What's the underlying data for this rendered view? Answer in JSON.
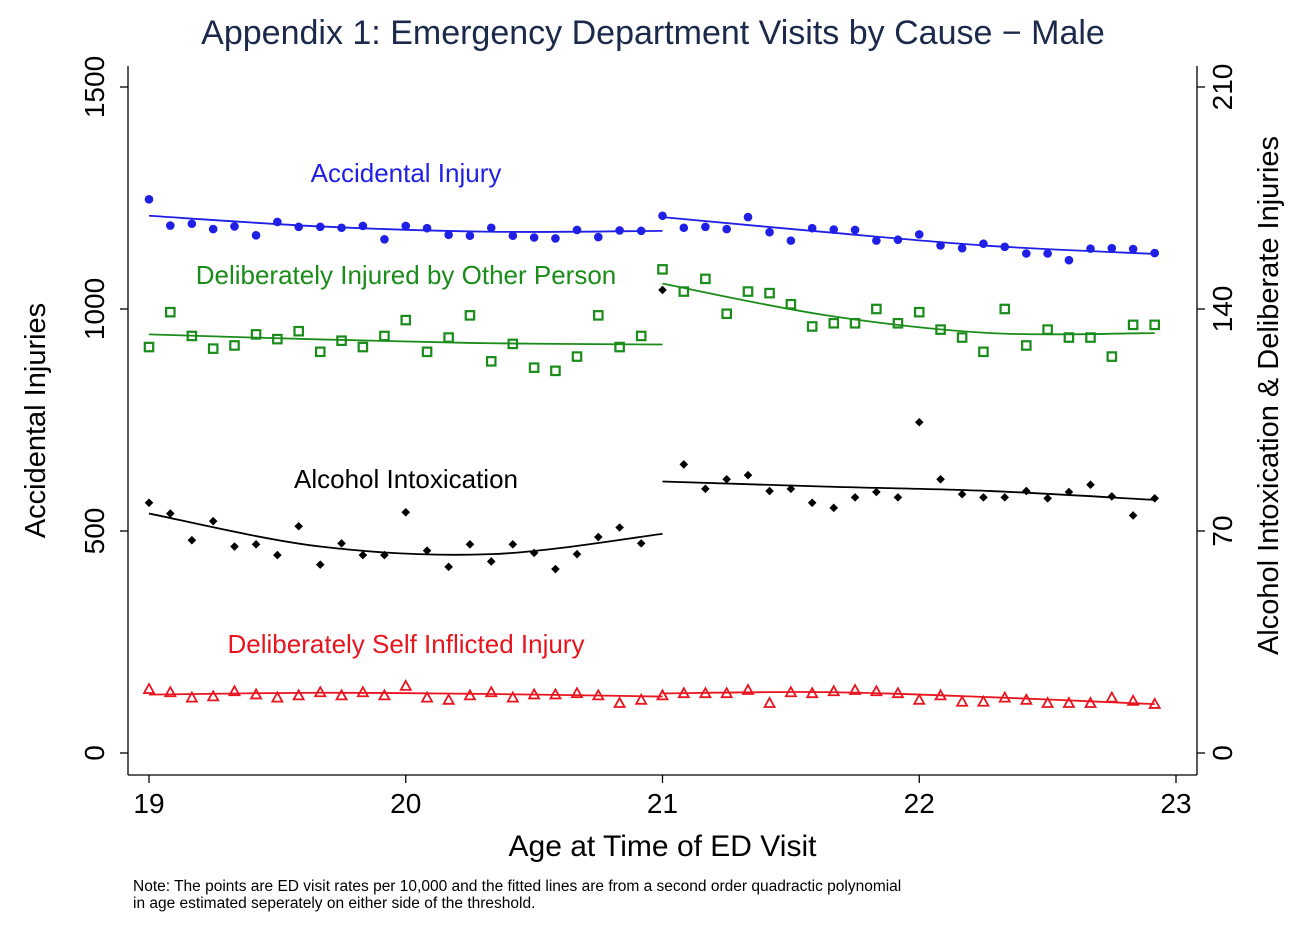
{
  "chart_data": {
    "type": "scatter",
    "title": "Appendix 1: Emergency Department Visits by Cause − Male",
    "xlabel": "Age at Time of ED Visit",
    "ylabel_left": "Accidental Injuries",
    "ylabel_right": "Alcohol Intoxication & Deliberate Injuries",
    "xlim": [
      19,
      23
    ],
    "ylim_left": [
      0,
      1500
    ],
    "ylim_right": [
      0,
      210
    ],
    "xticks": [
      "19",
      "20",
      "21",
      "22",
      "23"
    ],
    "yticks_left": [
      "0",
      "500",
      "1000",
      "1500"
    ],
    "yticks_right": [
      "0",
      "70",
      "140",
      "210"
    ],
    "grid": false,
    "threshold": 21,
    "series": [
      {
        "name": "Accidental Injury",
        "axis": "left",
        "color": "#1f1fe6",
        "marker": "circle",
        "x": [
          19.0,
          19.083,
          19.167,
          19.25,
          19.333,
          19.417,
          19.5,
          19.583,
          19.667,
          19.75,
          19.833,
          19.917,
          20.0,
          20.083,
          20.167,
          20.25,
          20.333,
          20.417,
          20.5,
          20.583,
          20.667,
          20.75,
          20.833,
          20.917,
          21.0,
          21.083,
          21.167,
          21.25,
          21.333,
          21.417,
          21.5,
          21.583,
          21.667,
          21.75,
          21.833,
          21.917,
          22.0,
          22.083,
          22.167,
          22.25,
          22.333,
          22.417,
          22.5,
          22.583,
          22.667,
          22.75,
          22.833,
          22.917
        ],
        "y": [
          1247,
          1188,
          1192,
          1180,
          1186,
          1166,
          1196,
          1185,
          1185,
          1183,
          1187,
          1157,
          1187,
          1182,
          1167,
          1165,
          1183,
          1165,
          1161,
          1159,
          1178,
          1162,
          1177,
          1176,
          1210,
          1183,
          1185,
          1180,
          1207,
          1173,
          1154,
          1182,
          1179,
          1178,
          1154,
          1156,
          1168,
          1143,
          1137,
          1147,
          1140,
          1125,
          1125,
          1110,
          1136,
          1137,
          1135,
          1126
        ],
        "fit_left": [
          1210,
          1186,
          1174,
          1176
        ],
        "fit_right": [
          1207,
          1173,
          1142,
          1124
        ]
      },
      {
        "name": "Deliberately Injured by Other Person",
        "axis": "right",
        "color": "#1a8c1a",
        "marker": "square",
        "x": [
          19.0,
          19.083,
          19.167,
          19.25,
          19.333,
          19.417,
          19.5,
          19.583,
          19.667,
          19.75,
          19.833,
          19.917,
          20.0,
          20.083,
          20.167,
          20.25,
          20.333,
          20.417,
          20.5,
          20.583,
          20.667,
          20.75,
          20.833,
          20.917,
          21.0,
          21.083,
          21.167,
          21.25,
          21.333,
          21.417,
          21.5,
          21.583,
          21.667,
          21.75,
          21.833,
          21.917,
          22.0,
          22.083,
          22.167,
          22.25,
          22.333,
          22.417,
          22.5,
          22.583,
          22.667,
          22.75,
          22.833,
          22.917
        ],
        "y": [
          128,
          139,
          131.5,
          127.5,
          128.5,
          132,
          130.5,
          133,
          126.5,
          130,
          128,
          131.5,
          136.5,
          126.5,
          131,
          138,
          123.5,
          129,
          121.5,
          120.5,
          125,
          138,
          128,
          131.5,
          152.5,
          145.5,
          149.5,
          138.5,
          145.5,
          145,
          141.5,
          134.5,
          135.5,
          135.5,
          140,
          135.5,
          139,
          133.5,
          131,
          126.5,
          140,
          128.5,
          133.5,
          131,
          131,
          125,
          135,
          135
        ],
        "fit_left": [
          132,
          130.4,
          129.2,
          128.8
        ],
        "fit_right": [
          148,
          138,
          132.4,
          132.4
        ]
      },
      {
        "name": "Alcohol Intoxication",
        "axis": "right",
        "color": "#000000",
        "marker": "diamond",
        "x": [
          19.0,
          19.083,
          19.167,
          19.25,
          19.333,
          19.417,
          19.5,
          19.583,
          19.667,
          19.75,
          19.833,
          19.917,
          20.0,
          20.083,
          20.167,
          20.25,
          20.333,
          20.417,
          20.5,
          20.583,
          20.667,
          20.75,
          20.833,
          20.917,
          21.0,
          21.083,
          21.167,
          21.25,
          21.333,
          21.417,
          21.5,
          21.583,
          21.667,
          21.75,
          21.833,
          21.917,
          22.0,
          22.083,
          22.167,
          22.25,
          22.333,
          22.417,
          22.5,
          22.583,
          22.667,
          22.75,
          22.833,
          22.917
        ],
        "y": [
          78.9,
          75.5,
          67.1,
          73.1,
          65.1,
          65.8,
          62.4,
          71.5,
          59.4,
          66.1,
          62.4,
          62.4,
          75.9,
          63.8,
          58.7,
          65.8,
          60.4,
          65.8,
          63.1,
          58,
          62.7,
          68.1,
          71.1,
          66.1,
          146,
          91,
          83.3,
          86.3,
          87.6,
          82.6,
          83.3,
          78.9,
          77.3,
          80.6,
          82.3,
          80.6,
          104.3,
          86.3,
          81.6,
          80.6,
          80.6,
          82.6,
          80.3,
          82.3,
          84.6,
          80.9,
          74.9,
          80.3
        ],
        "fit_left": [
          75.5,
          65.1,
          62.7,
          69.1
        ],
        "fit_right": [
          85.6,
          84,
          82.6,
          79.8
        ]
      },
      {
        "name": "Deliberately Self Inflicted Injury",
        "axis": "right",
        "color": "#e8141e",
        "marker": "triangle",
        "x": [
          19.0,
          19.083,
          19.167,
          19.25,
          19.333,
          19.417,
          19.5,
          19.583,
          19.667,
          19.75,
          19.833,
          19.917,
          20.0,
          20.083,
          20.167,
          20.25,
          20.333,
          20.417,
          20.5,
          20.583,
          20.667,
          20.75,
          20.833,
          20.917,
          21.0,
          21.083,
          21.167,
          21.25,
          21.333,
          21.417,
          21.5,
          21.583,
          21.667,
          21.75,
          21.833,
          21.917,
          22.0,
          22.083,
          22.167,
          22.25,
          22.333,
          22.417,
          22.5,
          22.583,
          22.667,
          22.75,
          22.833,
          22.917
        ],
        "y": [
          20.1,
          19.1,
          17.4,
          17.8,
          19.4,
          18.4,
          17.4,
          18.1,
          19.1,
          18.1,
          19.1,
          18.1,
          21.1,
          17.4,
          16.7,
          18.1,
          19.1,
          17.4,
          18.4,
          18.4,
          18.8,
          18.1,
          15.7,
          16.7,
          18.1,
          18.8,
          18.8,
          18.8,
          19.8,
          15.7,
          19.1,
          18.8,
          19.4,
          19.8,
          19.4,
          18.8,
          16.7,
          18.1,
          16.1,
          16.1,
          17.4,
          16.7,
          15.7,
          15.7,
          15.7,
          17.4,
          16.4,
          15.4
        ],
        "fit_left": [
          18.4,
          19,
          18.6,
          17.8
        ],
        "fit_right": [
          18.8,
          19.2,
          17.6,
          15.4
        ]
      }
    ],
    "annotations": [
      {
        "text": "Accidental Injury",
        "series": 0
      },
      {
        "text": "Deliberately Injured by Other Person",
        "series": 1
      },
      {
        "text": "Alcohol Intoxication",
        "series": 2
      },
      {
        "text": "Deliberately Self Inflicted Injury",
        "series": 3
      }
    ]
  },
  "note": {
    "line1": "Note: The points are ED visit rates per 10,000 and the fitted lines are from a second order quadractic polynomial",
    "line2": "in age estimated seperately on either side of the threshold."
  }
}
